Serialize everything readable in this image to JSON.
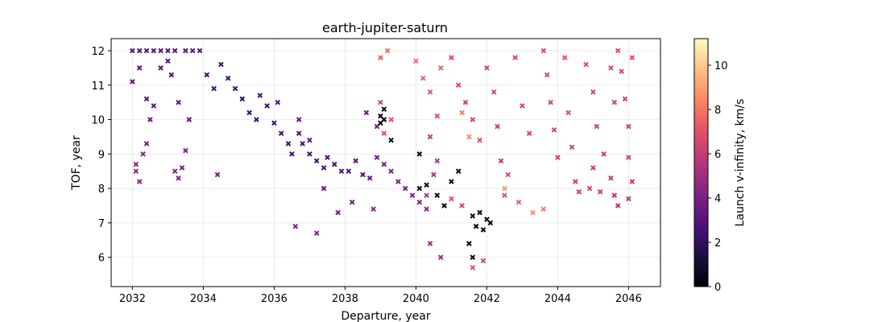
{
  "chart_data": {
    "type": "scatter",
    "title": "earth-jupiter-saturn",
    "xlabel": "Departure, year",
    "ylabel": "TOF, year",
    "colorbar_label": "Launch v-infinity, km/s",
    "marker": "x",
    "colormap": "magma",
    "xlim": [
      2031.4,
      2046.9
    ],
    "ylim": [
      5.15,
      12.35
    ],
    "clim": [
      0,
      11.2
    ],
    "grid": true,
    "xticks": [
      2032,
      2034,
      2036,
      2038,
      2040,
      2042,
      2044,
      2046
    ],
    "yticks": [
      6,
      7,
      8,
      9,
      10,
      11,
      12
    ],
    "cticks": [
      0,
      2,
      4,
      6,
      8,
      10
    ],
    "points": [
      [
        2032.0,
        12.0,
        3.0
      ],
      [
        2032.2,
        12.0,
        3.0
      ],
      [
        2032.4,
        12.0,
        3.0
      ],
      [
        2032.6,
        12.0,
        3.0
      ],
      [
        2032.8,
        12.0,
        3.0
      ],
      [
        2033.0,
        12.0,
        3.0
      ],
      [
        2033.2,
        12.0,
        3.0
      ],
      [
        2033.5,
        12.0,
        3.0
      ],
      [
        2033.7,
        12.0,
        3.0
      ],
      [
        2033.9,
        12.0,
        3.0
      ],
      [
        2032.0,
        11.1,
        3.2
      ],
      [
        2032.2,
        11.5,
        3.0
      ],
      [
        2032.4,
        10.6,
        3.2
      ],
      [
        2032.6,
        10.4,
        3.2
      ],
      [
        2032.5,
        10.0,
        3.6
      ],
      [
        2032.8,
        11.5,
        3.0
      ],
      [
        2033.0,
        11.7,
        2.8
      ],
      [
        2033.1,
        11.3,
        2.8
      ],
      [
        2033.3,
        10.5,
        3.2
      ],
      [
        2033.6,
        10.0,
        3.4
      ],
      [
        2032.1,
        8.7,
        4.5
      ],
      [
        2032.1,
        8.5,
        4.5
      ],
      [
        2032.2,
        8.2,
        4.5
      ],
      [
        2032.3,
        9.0,
        4.2
      ],
      [
        2032.4,
        9.3,
        4.0
      ],
      [
        2033.2,
        8.5,
        4.2
      ],
      [
        2033.3,
        8.3,
        4.0
      ],
      [
        2033.4,
        8.6,
        4.0
      ],
      [
        2033.5,
        9.1,
        4.0
      ],
      [
        2034.4,
        8.4,
        4.0
      ],
      [
        2034.1,
        11.3,
        2.5
      ],
      [
        2034.3,
        10.9,
        2.4
      ],
      [
        2034.5,
        11.6,
        2.4
      ],
      [
        2034.7,
        11.2,
        2.3
      ],
      [
        2034.9,
        10.9,
        2.4
      ],
      [
        2035.1,
        10.6,
        2.2
      ],
      [
        2035.3,
        10.2,
        2.2
      ],
      [
        2035.5,
        10.0,
        2.3
      ],
      [
        2035.6,
        10.7,
        2.6
      ],
      [
        2035.8,
        10.4,
        2.5
      ],
      [
        2036.0,
        9.9,
        2.4
      ],
      [
        2036.1,
        10.5,
        2.8
      ],
      [
        2036.2,
        9.6,
        2.5
      ],
      [
        2036.4,
        9.3,
        2.4
      ],
      [
        2036.5,
        9.0,
        2.4
      ],
      [
        2036.7,
        9.6,
        2.8
      ],
      [
        2036.8,
        9.3,
        2.6
      ],
      [
        2037.0,
        9.0,
        2.5
      ],
      [
        2037.2,
        8.8,
        2.5
      ],
      [
        2037.4,
        8.6,
        2.5
      ],
      [
        2037.5,
        8.9,
        2.5
      ],
      [
        2037.7,
        8.7,
        2.5
      ],
      [
        2037.9,
        8.5,
        2.6
      ],
      [
        2038.1,
        8.5,
        2.7
      ],
      [
        2038.3,
        8.8,
        2.8
      ],
      [
        2038.5,
        8.4,
        2.9
      ],
      [
        2038.7,
        8.3,
        3.0
      ],
      [
        2038.9,
        8.9,
        3.6
      ],
      [
        2039.1,
        8.7,
        3.8
      ],
      [
        2039.3,
        8.5,
        3.9
      ],
      [
        2039.5,
        8.2,
        4.0
      ],
      [
        2039.7,
        8.0,
        3.9
      ],
      [
        2039.9,
        7.8,
        4.0
      ],
      [
        2040.1,
        7.6,
        4.2
      ],
      [
        2040.3,
        7.4,
        4.4
      ],
      [
        2036.7,
        10.0,
        3.4
      ],
      [
        2037.0,
        9.4,
        3.2
      ],
      [
        2038.9,
        9.8,
        3.8
      ],
      [
        2038.6,
        10.2,
        3.6
      ],
      [
        2037.4,
        8.0,
        3.2
      ],
      [
        2038.2,
        7.6,
        3.8
      ],
      [
        2037.8,
        7.3,
        3.8
      ],
      [
        2038.8,
        7.4,
        4.2
      ],
      [
        2036.6,
        6.9,
        4.0
      ],
      [
        2037.2,
        6.7,
        4.0
      ],
      [
        2039.0,
        10.1,
        0.2
      ],
      [
        2039.1,
        10.3,
        0.2
      ],
      [
        2039.0,
        9.9,
        0.2
      ],
      [
        2039.1,
        10.0,
        0.3
      ],
      [
        2039.3,
        9.4,
        0.5
      ],
      [
        2040.1,
        8.0,
        0.3
      ],
      [
        2040.3,
        8.1,
        0.2
      ],
      [
        2040.6,
        7.8,
        0.2
      ],
      [
        2040.8,
        7.5,
        0.3
      ],
      [
        2041.2,
        8.5,
        0.3
      ],
      [
        2041.6,
        7.2,
        0.2
      ],
      [
        2041.7,
        6.9,
        0.2
      ],
      [
        2041.8,
        7.3,
        0.2
      ],
      [
        2041.9,
        6.8,
        0.2
      ],
      [
        2042.0,
        7.1,
        0.2
      ],
      [
        2041.5,
        6.4,
        0.3
      ],
      [
        2041.6,
        6.0,
        0.5
      ],
      [
        2042.1,
        7.0,
        0.2
      ],
      [
        2040.1,
        9.0,
        0.3
      ],
      [
        2041.0,
        8.2,
        0.4
      ],
      [
        2039.0,
        11.8,
        7.5
      ],
      [
        2039.2,
        12.0,
        7.8
      ],
      [
        2039.0,
        10.5,
        6.5
      ],
      [
        2039.1,
        9.6,
        7.0
      ],
      [
        2039.3,
        10.0,
        7.0
      ],
      [
        2040.0,
        11.7,
        7.8
      ],
      [
        2040.2,
        11.2,
        7.5
      ],
      [
        2040.4,
        10.8,
        7.2
      ],
      [
        2040.6,
        10.1,
        6.8
      ],
      [
        2040.7,
        11.5,
        7.6
      ],
      [
        2040.4,
        9.5,
        6.0
      ],
      [
        2040.6,
        8.8,
        5.5
      ],
      [
        2040.5,
        8.4,
        5.2
      ],
      [
        2040.3,
        7.8,
        5.6
      ],
      [
        2040.4,
        6.4,
        5.0
      ],
      [
        2040.7,
        6.0,
        5.0
      ],
      [
        2041.0,
        7.7,
        7.0
      ],
      [
        2041.3,
        7.5,
        6.5
      ],
      [
        2041.9,
        5.9,
        6.5
      ],
      [
        2041.6,
        5.7,
        7.0
      ],
      [
        2041.0,
        11.8,
        6.8
      ],
      [
        2041.2,
        11.0,
        6.5
      ],
      [
        2041.4,
        10.5,
        6.2
      ],
      [
        2041.6,
        10.0,
        6.5
      ],
      [
        2041.8,
        9.4,
        6.8
      ],
      [
        2042.0,
        11.5,
        6.5
      ],
      [
        2042.2,
        10.8,
        6.4
      ],
      [
        2042.3,
        9.8,
        6.2
      ],
      [
        2042.4,
        8.8,
        6.0
      ],
      [
        2042.6,
        8.4,
        6.8
      ],
      [
        2042.8,
        11.8,
        6.5
      ],
      [
        2043.0,
        10.4,
        6.6
      ],
      [
        2043.2,
        9.6,
        6.5
      ],
      [
        2042.5,
        7.8,
        6.8
      ],
      [
        2042.9,
        7.6,
        7.5
      ],
      [
        2041.3,
        10.2,
        8.2
      ],
      [
        2041.5,
        9.5,
        8.5
      ],
      [
        2042.5,
        8.0,
        8.8
      ],
      [
        2043.3,
        7.3,
        8.5
      ],
      [
        2043.6,
        7.4,
        8.0
      ],
      [
        2043.6,
        12.0,
        6.6
      ],
      [
        2043.7,
        11.3,
        6.5
      ],
      [
        2043.8,
        10.5,
        6.4
      ],
      [
        2043.9,
        9.7,
        6.5
      ],
      [
        2044.0,
        8.9,
        6.2
      ],
      [
        2044.2,
        11.8,
        7.0
      ],
      [
        2044.3,
        10.2,
        6.8
      ],
      [
        2044.4,
        9.2,
        6.4
      ],
      [
        2044.5,
        8.2,
        6.0
      ],
      [
        2044.6,
        7.9,
        6.2
      ],
      [
        2044.8,
        11.6,
        6.6
      ],
      [
        2045.0,
        10.8,
        6.4
      ],
      [
        2045.1,
        9.8,
        6.2
      ],
      [
        2045.3,
        9.0,
        6.0
      ],
      [
        2045.5,
        8.3,
        5.8
      ],
      [
        2045.6,
        7.8,
        5.6
      ],
      [
        2045.7,
        7.5,
        5.5
      ],
      [
        2045.0,
        8.6,
        6.0
      ],
      [
        2045.2,
        7.9,
        6.0
      ],
      [
        2044.9,
        8.0,
        6.6
      ],
      [
        2045.7,
        12.0,
        6.8
      ],
      [
        2045.8,
        11.4,
        6.6
      ],
      [
        2045.9,
        10.6,
        6.4
      ],
      [
        2046.0,
        9.8,
        6.3
      ],
      [
        2046.0,
        8.9,
        6.2
      ],
      [
        2046.1,
        8.2,
        6.0
      ],
      [
        2046.0,
        7.7,
        5.8
      ],
      [
        2045.6,
        10.5,
        6.5
      ],
      [
        2045.5,
        11.5,
        6.6
      ],
      [
        2046.1,
        11.8,
        6.8
      ]
    ]
  }
}
